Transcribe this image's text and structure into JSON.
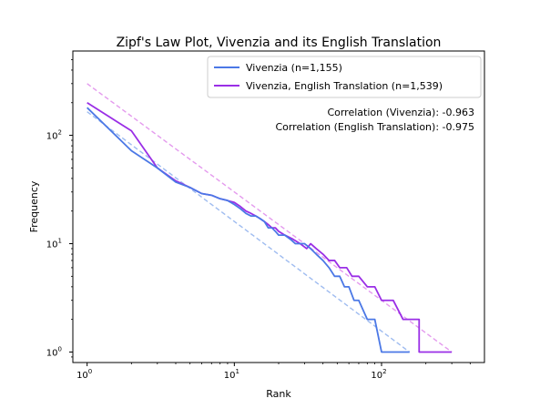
{
  "chart_data": {
    "type": "line",
    "title": "Zipf's Law Plot, Vivenzia and its English Translation",
    "xlabel": "Rank",
    "ylabel": "Frequency",
    "xscale": "log",
    "yscale": "log",
    "xlim": [
      0.8,
      500
    ],
    "ylim": [
      0.8,
      600
    ],
    "grid": false,
    "legend_position": "top-right",
    "x_ticks": [
      {
        "value": 1,
        "base": "10",
        "exp": "0"
      },
      {
        "value": 10,
        "base": "10",
        "exp": "1"
      },
      {
        "value": 100,
        "base": "10",
        "exp": "2"
      }
    ],
    "y_ticks": [
      {
        "value": 1,
        "base": "10",
        "exp": "0"
      },
      {
        "value": 10,
        "base": "10",
        "exp": "1"
      },
      {
        "value": 100,
        "base": "10",
        "exp": "2"
      }
    ],
    "series": [
      {
        "name": "Vivenzia (n=1,155)",
        "color": "#4b78e6",
        "points": [
          [
            1,
            180
          ],
          [
            2,
            72
          ],
          [
            3,
            50
          ],
          [
            4,
            37
          ],
          [
            5,
            33
          ],
          [
            6,
            29
          ],
          [
            7,
            28
          ],
          [
            8,
            26
          ],
          [
            9,
            25
          ],
          [
            10,
            23
          ],
          [
            11,
            21
          ],
          [
            12,
            19
          ],
          [
            13,
            18
          ],
          [
            14,
            18
          ],
          [
            15,
            17
          ],
          [
            16,
            16
          ],
          [
            17,
            14
          ],
          [
            18,
            14
          ],
          [
            19,
            13
          ],
          [
            20,
            12
          ],
          [
            22,
            12
          ],
          [
            24,
            11
          ],
          [
            26,
            10
          ],
          [
            28,
            10
          ],
          [
            30,
            10
          ],
          [
            33,
            9
          ],
          [
            36,
            8
          ],
          [
            40,
            7
          ],
          [
            44,
            6
          ],
          [
            48,
            5
          ],
          [
            52,
            5
          ],
          [
            56,
            4
          ],
          [
            60,
            4
          ],
          [
            65,
            3
          ],
          [
            70,
            3
          ],
          [
            80,
            2
          ],
          [
            90,
            2
          ],
          [
            100,
            1
          ],
          [
            155,
            1
          ]
        ]
      },
      {
        "name": "Vivenzia, English Translation (n=1,539)",
        "color": "#9a2ee6",
        "points": [
          [
            1,
            200
          ],
          [
            2,
            110
          ],
          [
            3,
            50
          ],
          [
            4,
            38
          ],
          [
            5,
            33
          ],
          [
            6,
            29
          ],
          [
            7,
            28
          ],
          [
            8,
            26
          ],
          [
            9,
            25
          ],
          [
            10,
            24
          ],
          [
            11,
            22
          ],
          [
            12,
            20
          ],
          [
            13,
            19
          ],
          [
            14,
            18
          ],
          [
            15,
            17
          ],
          [
            16,
            16
          ],
          [
            17,
            15
          ],
          [
            18,
            14
          ],
          [
            19,
            14
          ],
          [
            20,
            13
          ],
          [
            22,
            12
          ],
          [
            25,
            11
          ],
          [
            28,
            10
          ],
          [
            31,
            9
          ],
          [
            33,
            10
          ],
          [
            36,
            9
          ],
          [
            40,
            8
          ],
          [
            44,
            7
          ],
          [
            48,
            7
          ],
          [
            52,
            6
          ],
          [
            58,
            6
          ],
          [
            63,
            5
          ],
          [
            70,
            5
          ],
          [
            80,
            4
          ],
          [
            90,
            4
          ],
          [
            100,
            3
          ],
          [
            120,
            3
          ],
          [
            140,
            2
          ],
          [
            180,
            2
          ],
          [
            180,
            1
          ],
          [
            300,
            1
          ]
        ]
      }
    ],
    "reference_lines": [
      {
        "for_series": "Vivenzia (n=1,155)",
        "color": "#9fbcf0",
        "points": [
          [
            1,
            165
          ],
          [
            155,
            1
          ]
        ]
      },
      {
        "for_series": "Vivenzia, English Translation (n=1,539)",
        "color": "#e49aee",
        "points": [
          [
            1,
            300
          ],
          [
            300,
            1
          ]
        ]
      }
    ],
    "annotations": [
      "Correlation (Vivenzia): -0.963",
      "Correlation (English Translation): -0.975"
    ]
  }
}
